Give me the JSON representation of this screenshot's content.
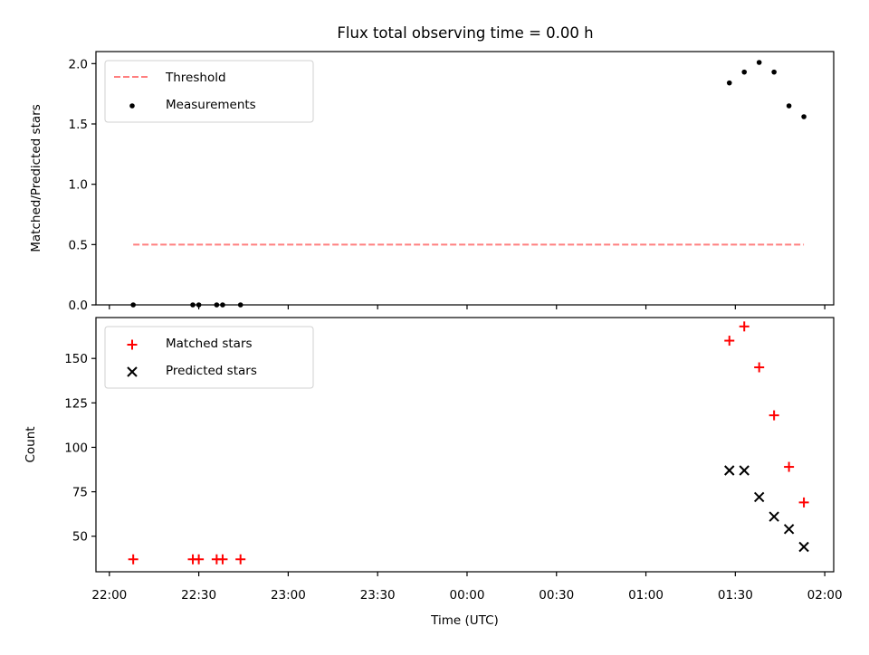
{
  "figure_title": "Flux total observing time = 0.00 h",
  "chart_data": [
    {
      "type": "scatter",
      "title": "Flux total observing time = 0.00 h",
      "xlabel": "",
      "ylabel": "Matched/Predicted stars",
      "ylim": [
        0,
        2.1
      ],
      "yticks": [
        "0.0",
        "0.5",
        "1.0",
        "1.5",
        "2.0"
      ],
      "grid": false,
      "legend_position": "upper left",
      "series": [
        {
          "name": "Threshold",
          "kind": "line",
          "style": "dashed",
          "color": "#ff7f7f",
          "points": [
            [
              "22:08",
              0.5
            ],
            [
              "01:53",
              0.5
            ]
          ]
        },
        {
          "name": "Measurements",
          "kind": "scatter",
          "marker": "dot",
          "color": "#000000",
          "points": [
            [
              "22:08",
              0.0
            ],
            [
              "22:28",
              0.0
            ],
            [
              "22:30",
              0.0
            ],
            [
              "22:36",
              0.0
            ],
            [
              "22:38",
              0.0
            ],
            [
              "22:44",
              0.0
            ],
            [
              "01:28",
              1.84
            ],
            [
              "01:33",
              1.93
            ],
            [
              "01:38",
              2.01
            ],
            [
              "01:43",
              1.93
            ],
            [
              "01:48",
              1.65
            ],
            [
              "01:53",
              1.56
            ]
          ]
        }
      ]
    },
    {
      "type": "scatter",
      "title": "",
      "xlabel": "Time (UTC)",
      "ylabel": "Count",
      "ylim": [
        30,
        173
      ],
      "yticks": [
        "50",
        "75",
        "100",
        "125",
        "150"
      ],
      "xticks": [
        "22:00",
        "22:30",
        "23:00",
        "23:30",
        "00:00",
        "00:30",
        "01:00",
        "01:30",
        "02:00"
      ],
      "grid": false,
      "legend_position": "upper left",
      "series": [
        {
          "name": "Matched stars",
          "kind": "scatter",
          "marker": "plus",
          "color": "#ff0000",
          "points": [
            [
              "22:08",
              37
            ],
            [
              "22:28",
              37
            ],
            [
              "22:30",
              37
            ],
            [
              "22:36",
              37
            ],
            [
              "22:38",
              37
            ],
            [
              "22:44",
              37
            ],
            [
              "01:28",
              160
            ],
            [
              "01:33",
              168
            ],
            [
              "01:38",
              145
            ],
            [
              "01:43",
              118
            ],
            [
              "01:48",
              89
            ],
            [
              "01:53",
              69
            ]
          ]
        },
        {
          "name": "Predicted stars",
          "kind": "scatter",
          "marker": "x",
          "color": "#000000",
          "points": [
            [
              "01:28",
              87
            ],
            [
              "01:33",
              87
            ],
            [
              "01:38",
              72
            ],
            [
              "01:43",
              61
            ],
            [
              "01:48",
              54
            ],
            [
              "01:53",
              44
            ]
          ]
        }
      ]
    }
  ]
}
